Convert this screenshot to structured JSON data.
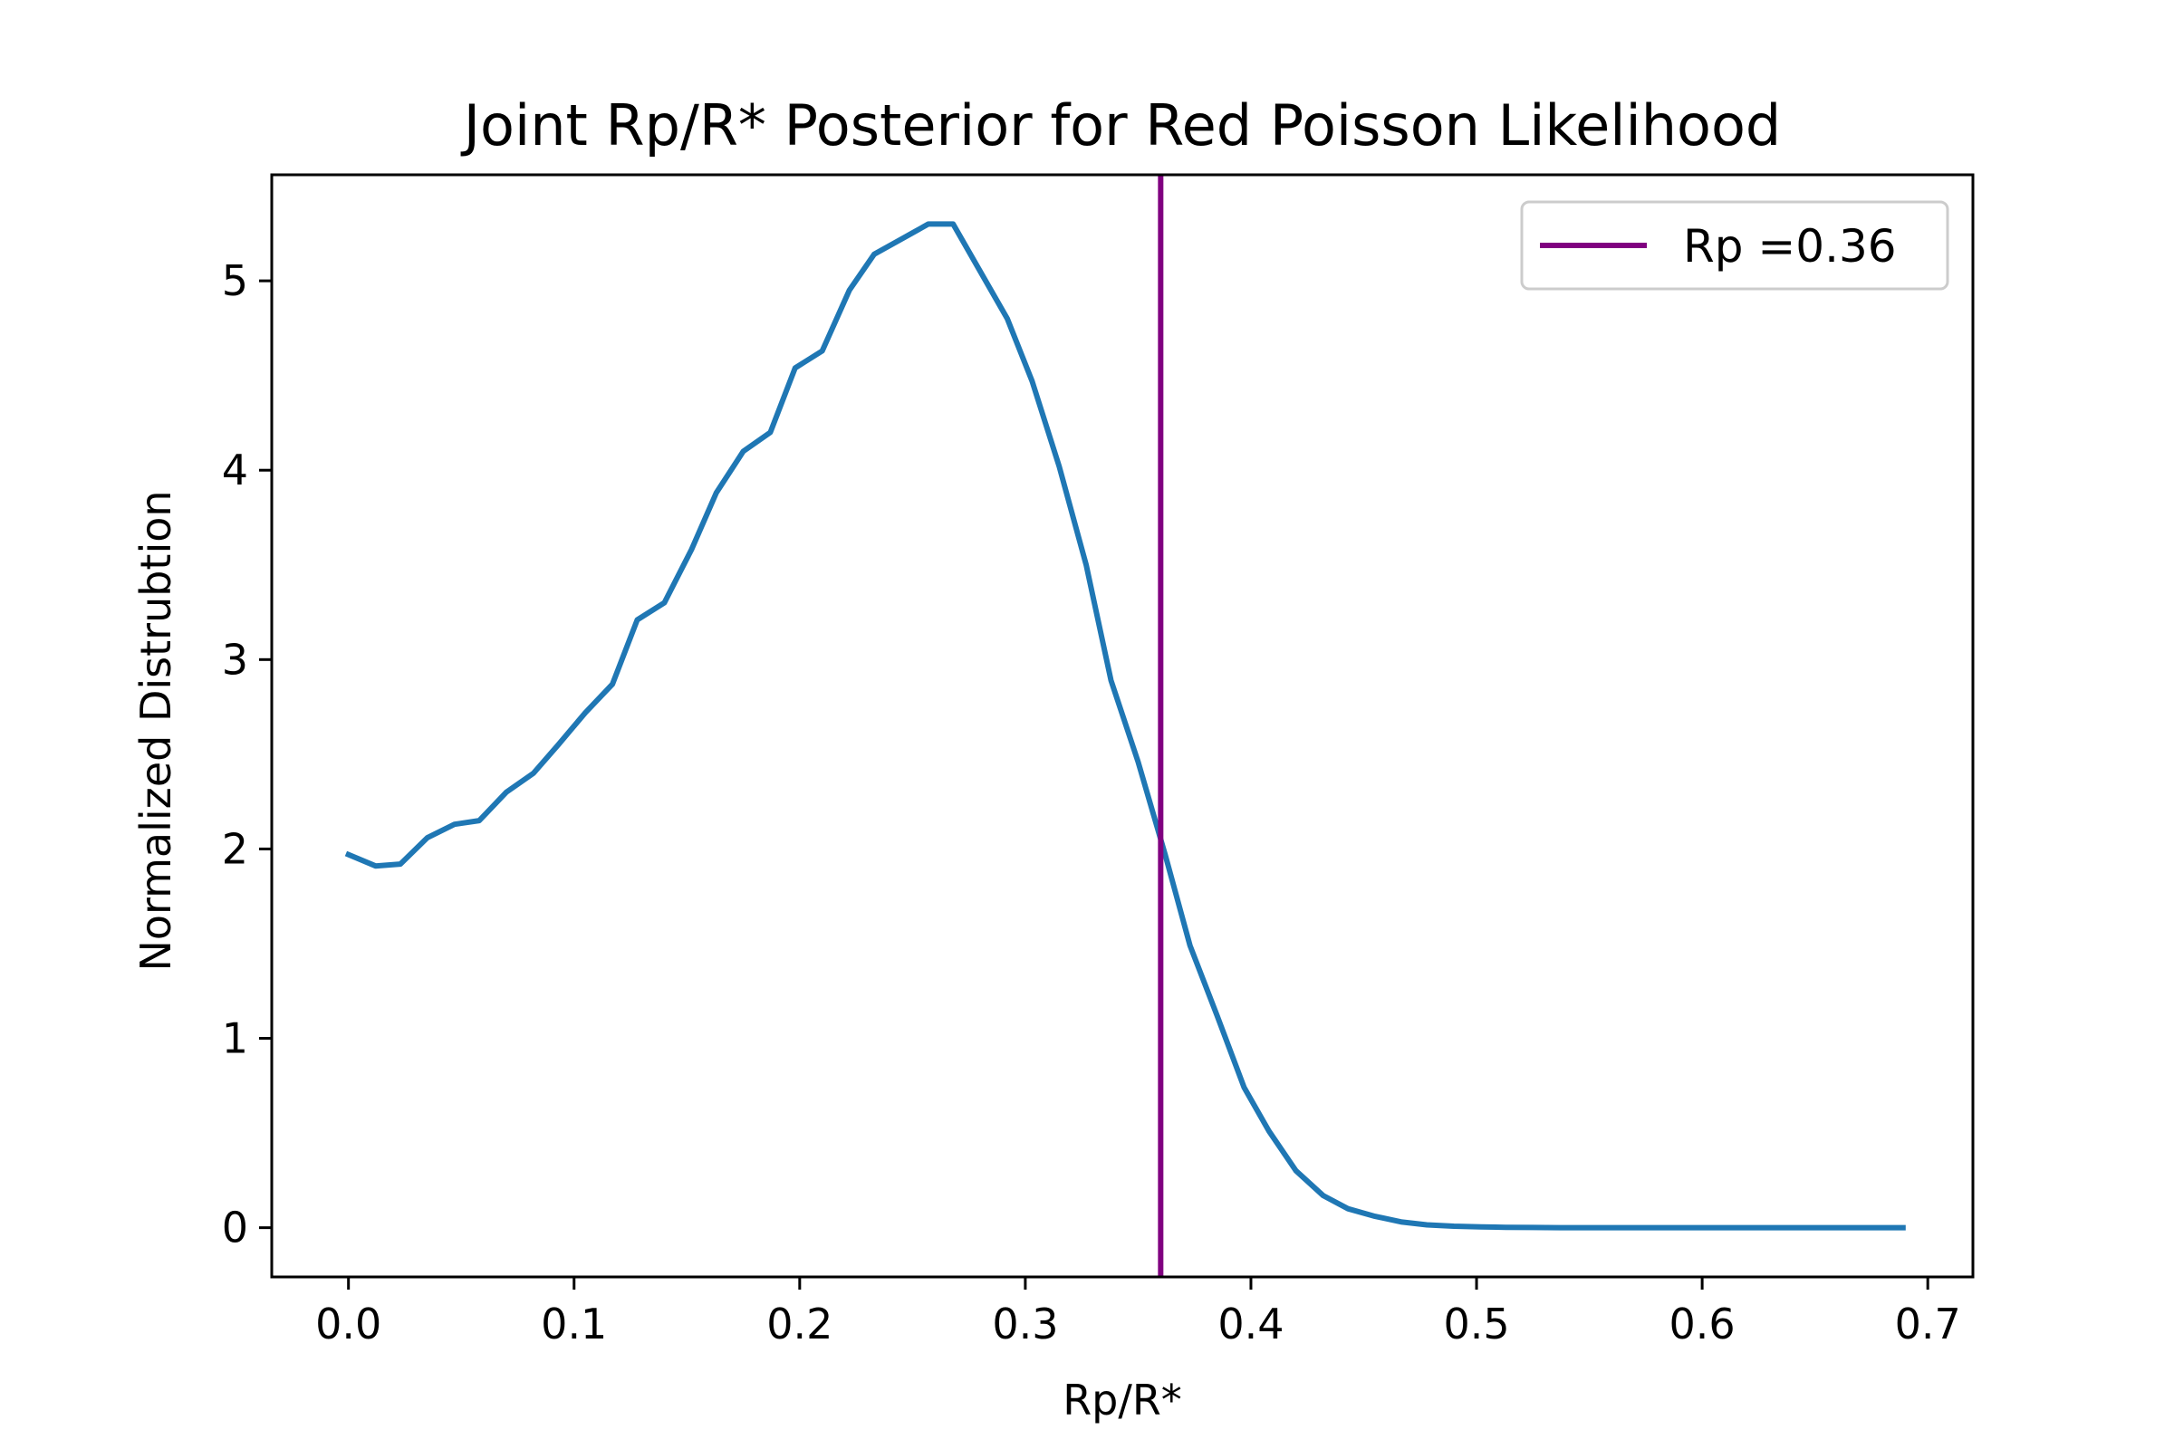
{
  "chart_data": {
    "type": "line",
    "title": "Joint Rp/R* Posterior for Red Poisson Likelihood",
    "xlabel": "Rp/R*",
    "ylabel": "Normalized Distrubtion",
    "xlim": [
      -0.034,
      0.72
    ],
    "ylim": [
      -0.26,
      5.56
    ],
    "xticks": [
      0.0,
      0.1,
      0.2,
      0.3,
      0.4,
      0.5,
      0.6,
      0.7
    ],
    "xtick_labels": [
      "0.0",
      "0.1",
      "0.2",
      "0.3",
      "0.4",
      "0.5",
      "0.6",
      "0.7"
    ],
    "yticks": [
      0,
      1,
      2,
      3,
      4,
      5
    ],
    "ytick_labels": [
      "0",
      "1",
      "2",
      "3",
      "4",
      "5"
    ],
    "grid": false,
    "legend_position": "top-right",
    "series": [
      {
        "color": "#1f77b4",
        "x": [
          0.0,
          0.012,
          0.023,
          0.035,
          0.047,
          0.058,
          0.07,
          0.082,
          0.093,
          0.105,
          0.117,
          0.128,
          0.14,
          0.152,
          0.163,
          0.175,
          0.187,
          0.198,
          0.21,
          0.222,
          0.233,
          0.245,
          0.257,
          0.268,
          0.28,
          0.292,
          0.303,
          0.315,
          0.327,
          0.338,
          0.35,
          0.362,
          0.373,
          0.385,
          0.397,
          0.408,
          0.42,
          0.432,
          0.443,
          0.455,
          0.467,
          0.478,
          0.49,
          0.502,
          0.513,
          0.525,
          0.537,
          0.548,
          0.56,
          0.572,
          0.583,
          0.595,
          0.607,
          0.618,
          0.63,
          0.642,
          0.653,
          0.665,
          0.677,
          0.689
        ],
        "y": [
          1.97,
          1.91,
          1.92,
          2.06,
          2.13,
          2.15,
          2.3,
          2.4,
          2.55,
          2.72,
          2.87,
          3.21,
          3.3,
          3.58,
          3.88,
          4.1,
          4.2,
          4.54,
          4.63,
          4.95,
          5.14,
          5.22,
          5.3,
          5.3,
          5.05,
          4.8,
          4.47,
          4.02,
          3.5,
          2.89,
          2.46,
          1.97,
          1.49,
          1.12,
          0.74,
          0.51,
          0.3,
          0.17,
          0.1,
          0.06,
          0.03,
          0.015,
          0.008,
          0.004,
          0.002,
          0.001,
          0,
          0,
          0,
          0,
          0,
          0,
          0,
          0,
          0,
          0,
          0,
          0,
          0,
          0
        ]
      }
    ],
    "vline": {
      "x": 0.36,
      "label": "Rp =0.36",
      "color": "#800080"
    }
  }
}
